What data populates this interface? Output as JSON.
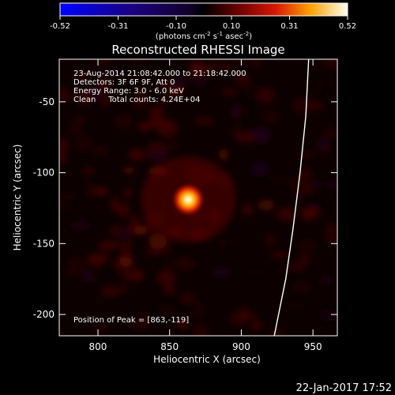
{
  "chart_data": {
    "type": "heatmap",
    "title": "Reconstructed RHESSI Image",
    "xlabel": "Heliocentric X (arcsec)",
    "ylabel": "Heliocentric Y (arcsec)",
    "xlim": [
      773,
      967
    ],
    "ylim": [
      -215,
      -20
    ],
    "x_ticks": [
      800,
      850,
      900,
      950
    ],
    "y_ticks": [
      -50,
      -100,
      -150,
      -200
    ],
    "colorbar": {
      "ticks": [
        "-0.52",
        "-0.31",
        "-0.10",
        "0.10",
        "0.31",
        "0.52"
      ],
      "range": [
        -0.52,
        0.52
      ],
      "units_label": "(photons cm",
      "units_sup1": "-2",
      "units_mid": " s",
      "units_sup2": "-1",
      "units_end": " asec",
      "units_sup3": "-2",
      "units_close": ")"
    },
    "peak": {
      "x": 863,
      "y": -119,
      "value": 0.52
    },
    "limb_curve": [
      [
        947,
        -20
      ],
      [
        945,
        -60
      ],
      [
        941,
        -100
      ],
      [
        936,
        -140
      ],
      [
        931,
        -175
      ],
      [
        926,
        -200
      ],
      [
        923,
        -215
      ]
    ],
    "annotations": {
      "line1": "23-Aug-2014 21:08:42.000 to 21:18:42.000",
      "line2": "Detectors: 3F 6F 9F, Att 0",
      "line3": "Energy Range: 3.0 - 6.0 keV",
      "line4": "Clean     Total counts: 4.24E+04",
      "peak_label": "Position of Peak = [863,-119]"
    },
    "grid": false,
    "colormap": "rhessi"
  },
  "footer": {
    "date": "22-Jan-2017 17:52"
  }
}
